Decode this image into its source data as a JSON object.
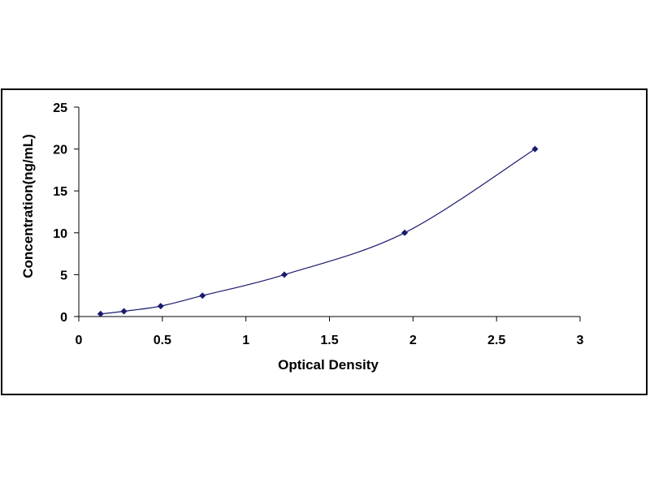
{
  "chart_data": {
    "type": "scatter",
    "title": "",
    "xlabel": "Optical Density",
    "ylabel": "Concentration(ng/mL)",
    "xlim": [
      0,
      3
    ],
    "ylim": [
      0,
      25
    ],
    "xticks": [
      0,
      0.5,
      1,
      1.5,
      2,
      2.5,
      3
    ],
    "yticks": [
      0,
      5,
      10,
      15,
      20,
      25
    ],
    "xtick_labels": [
      "0",
      "0.5",
      "1",
      "1.5",
      "2",
      "2.5",
      "3"
    ],
    "ytick_labels": [
      "0",
      "5",
      "10",
      "15",
      "20",
      "25"
    ],
    "grid": false,
    "legend": "none",
    "fit_line": true,
    "colors": {
      "marker": "#1a1a6e",
      "line": "#1a1a6e",
      "axis": "#000000",
      "frame": "#000000"
    },
    "series": [
      {
        "x": [
          0.13,
          0.27,
          0.49,
          0.74,
          1.23,
          1.95,
          2.73
        ],
        "y": [
          0.31,
          0.63,
          1.25,
          2.5,
          5,
          10,
          20
        ]
      }
    ]
  }
}
